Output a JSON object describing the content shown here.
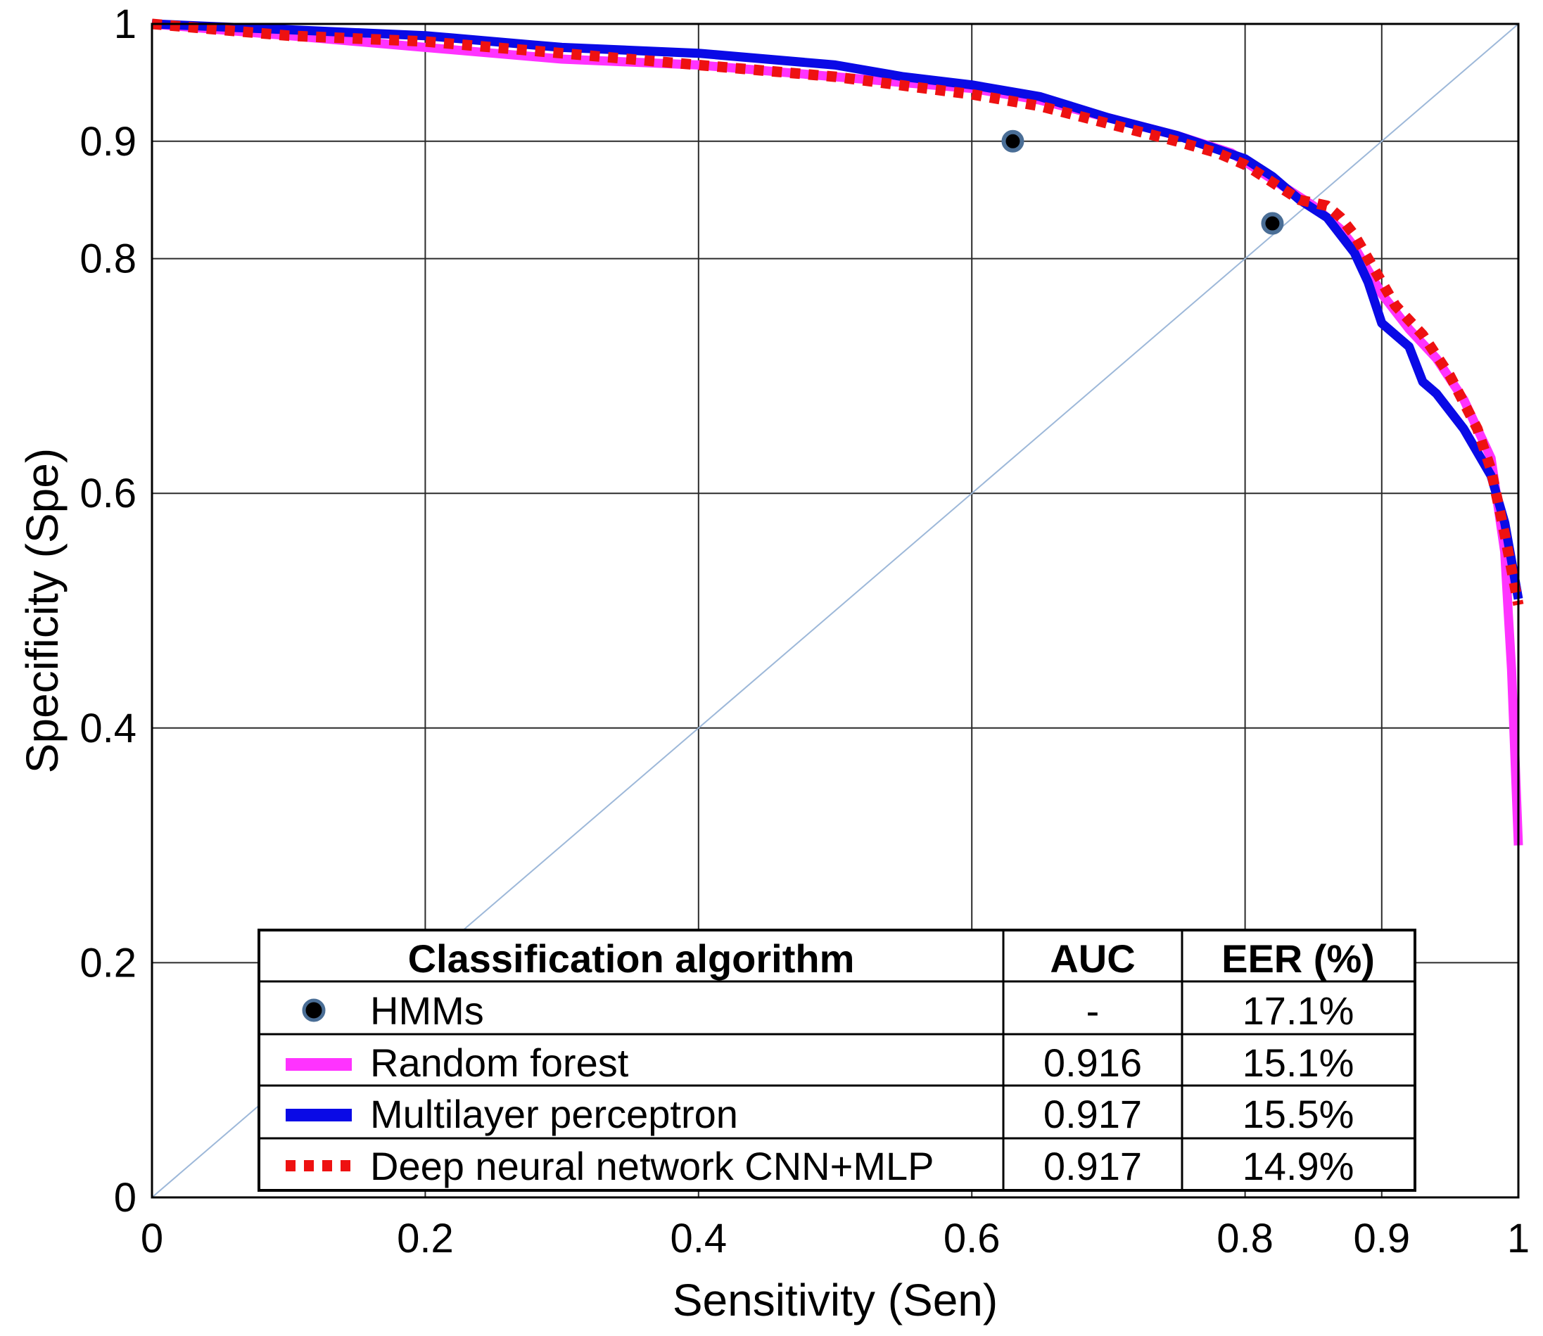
{
  "chart_data": {
    "type": "line",
    "xlabel": "Sensitivity (Sen)",
    "ylabel": "Specificity (Spe)",
    "xlim": [
      0,
      1
    ],
    "ylim": [
      0,
      1
    ],
    "grid": true,
    "x_ticks": [
      0,
      0.2,
      0.4,
      0.6,
      0.8,
      0.9,
      1
    ],
    "x_tick_labels": [
      "0",
      "0.2",
      "0.4",
      "0.6",
      "0.8",
      "0.9",
      "1"
    ],
    "y_ticks": [
      0,
      0.2,
      0.4,
      0.6,
      0.8,
      0.9,
      1
    ],
    "y_tick_labels": [
      "0",
      "0.2",
      "0.4",
      "0.6",
      "0.8",
      "0.9",
      "1"
    ],
    "diagonal": {
      "x": [
        0,
        1
      ],
      "y": [
        0,
        1
      ],
      "color": "#9db8d9"
    },
    "points": {
      "name": "HMMs",
      "color": "#000000",
      "edge": "#4a6e96",
      "x": [
        0.63,
        0.82
      ],
      "y": [
        0.9,
        0.83
      ]
    },
    "series": [
      {
        "name": "Random forest",
        "color": "#ff33ff",
        "style": "solid",
        "x": [
          0,
          0.1,
          0.2,
          0.3,
          0.4,
          0.5,
          0.6,
          0.65,
          0.7,
          0.75,
          0.79,
          0.81,
          0.83,
          0.85,
          0.87,
          0.88,
          0.89,
          0.9,
          0.92,
          0.94,
          0.96,
          0.98,
          0.99,
          0.995,
          1.0
        ],
        "y": [
          1.0,
          0.99,
          0.98,
          0.97,
          0.965,
          0.955,
          0.945,
          0.935,
          0.92,
          0.905,
          0.89,
          0.875,
          0.86,
          0.845,
          0.825,
          0.81,
          0.79,
          0.77,
          0.74,
          0.715,
          0.68,
          0.63,
          0.55,
          0.45,
          0.3
        ]
      },
      {
        "name": "Multilayer perceptron",
        "color": "#0a0ae6",
        "style": "solid",
        "x": [
          0,
          0.1,
          0.2,
          0.3,
          0.4,
          0.5,
          0.55,
          0.6,
          0.65,
          0.7,
          0.75,
          0.8,
          0.82,
          0.84,
          0.86,
          0.88,
          0.89,
          0.9,
          0.91,
          0.92,
          0.93,
          0.94,
          0.96,
          0.98,
          0.99,
          1.0
        ],
        "y": [
          1.0,
          0.995,
          0.99,
          0.98,
          0.975,
          0.965,
          0.955,
          0.948,
          0.938,
          0.92,
          0.905,
          0.885,
          0.87,
          0.85,
          0.835,
          0.805,
          0.78,
          0.745,
          0.735,
          0.725,
          0.695,
          0.685,
          0.655,
          0.615,
          0.575,
          0.51
        ]
      },
      {
        "name": "Deep neural network CNN+MLP",
        "color": "#ee1111",
        "style": "dotted",
        "x": [
          0,
          0.1,
          0.2,
          0.3,
          0.4,
          0.5,
          0.6,
          0.65,
          0.7,
          0.75,
          0.78,
          0.8,
          0.82,
          0.84,
          0.86,
          0.87,
          0.88,
          0.89,
          0.9,
          0.91,
          0.93,
          0.95,
          0.97,
          0.98,
          0.99,
          1.0
        ],
        "y": [
          1.0,
          0.99,
          0.985,
          0.975,
          0.965,
          0.955,
          0.94,
          0.93,
          0.915,
          0.9,
          0.89,
          0.88,
          0.865,
          0.85,
          0.845,
          0.835,
          0.82,
          0.8,
          0.78,
          0.76,
          0.735,
          0.7,
          0.655,
          0.62,
          0.565,
          0.505
        ]
      }
    ]
  },
  "legend_table": {
    "headers": {
      "algorithm": "Classification algorithm",
      "auc": "AUC",
      "eer": "EER (%)"
    },
    "rows": [
      {
        "name": "HMMs",
        "marker": "dot",
        "auc": "-",
        "eer": "17.1%"
      },
      {
        "name": "Random forest",
        "marker": "line-magenta",
        "auc": "0.916",
        "eer": "15.1%"
      },
      {
        "name": "Multilayer perceptron",
        "marker": "line-blue",
        "auc": "0.917",
        "eer": "15.5%"
      },
      {
        "name": "Deep neural network CNN+MLP",
        "marker": "line-red-dotted",
        "auc": "0.917",
        "eer": "14.9%"
      }
    ]
  }
}
